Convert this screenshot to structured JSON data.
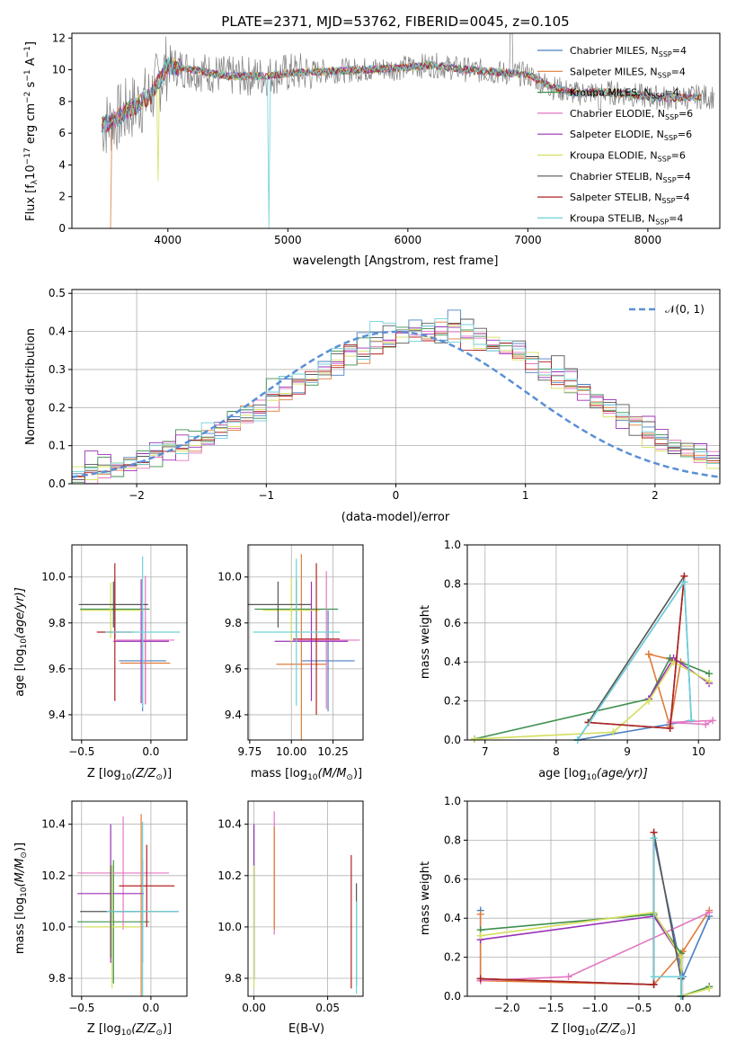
{
  "chart_data": [
    {
      "id": "spectrum",
      "type": "line",
      "title": "PLATE=2371, MJD=53762, FIBERID=0045, z=0.105",
      "xlabel": "wavelength [Angstrom, rest frame]",
      "ylabel": "Flux [f",
      "ylabel_sub": "λ",
      "ylabel_mid": "10",
      "ylabel_sup1": "−17",
      "ylabel_tail": " erg cm",
      "ylabel_sup2": "−2",
      "ylabel_tail2": " s",
      "ylabel_sup3": "−1",
      "ylabel_tail3": " A",
      "ylabel_sup4": "−1",
      "ylabel_end": "]",
      "xlim": [
        3200,
        8600
      ],
      "ylim": [
        0,
        12.3
      ],
      "xticks": [
        4000,
        5000,
        6000,
        7000,
        8000
      ],
      "yticks": [
        0,
        2,
        4,
        6,
        8,
        10,
        12
      ],
      "xtick_labels": [
        "4000",
        "5000",
        "6000",
        "7000",
        "8000"
      ],
      "ytick_labels": [
        "0",
        "2",
        "4",
        "6",
        "8",
        "10",
        "12"
      ],
      "grid": false,
      "legend_position": "right",
      "series": [
        {
          "label": "Chabrier MILES, N",
          "sub": "SSP",
          "tail": "=4",
          "color": "#4c7fc0"
        },
        {
          "label": "Salpeter MILES, N",
          "sub": "SSP",
          "tail": "=4",
          "color": "#e07b39"
        },
        {
          "label": "Kroupa MILES, N",
          "sub": "SSP",
          "tail": "=4",
          "color": "#3f8f4f"
        },
        {
          "label": "Chabrier ELODIE, N",
          "sub": "SSP",
          "tail": "=6",
          "color": "#e377c2"
        },
        {
          "label": "Salpeter ELODIE, N",
          "sub": "SSP",
          "tail": "=6",
          "color": "#9a32b8"
        },
        {
          "label": "Kroupa ELODIE, N",
          "sub": "SSP",
          "tail": "=6",
          "color": "#d4df5c"
        },
        {
          "label": "Chabrier STELIB, N",
          "sub": "SSP",
          "tail": "=4",
          "color": "#555555"
        },
        {
          "label": "Salpeter STELIB, N",
          "sub": "SSP",
          "tail": "=4",
          "color": "#b22222"
        },
        {
          "label": "Kroupa STELIB, N",
          "sub": "SSP",
          "tail": "=4",
          "color": "#6fd0d8"
        }
      ],
      "data_color": "#808080",
      "model_continuum": {
        "x": [
          3450,
          3550,
          3700,
          3850,
          4000,
          4200,
          4500,
          4800,
          5000,
          5300,
          5600,
          5900,
          6200,
          6500,
          6800,
          7000,
          7200,
          7400,
          7600,
          7800,
          8000,
          8200,
          8400
        ],
        "y": [
          6.5,
          6.8,
          7.6,
          8.3,
          10.3,
          10.0,
          9.6,
          9.6,
          9.8,
          9.9,
          10.0,
          10.1,
          10.3,
          10.0,
          9.8,
          9.7,
          8.9,
          8.5,
          8.6,
          8.5,
          8.3,
          8.2,
          8.3
        ]
      }
    },
    {
      "id": "residual-histogram",
      "type": "step",
      "xlabel": "(data-model)/error",
      "ylabel": "Normed distribution",
      "xlim": [
        -2.5,
        2.5
      ],
      "ylim": [
        0,
        0.51
      ],
      "xticks": [
        -2,
        -1,
        0,
        1,
        2
      ],
      "xtick_labels": [
        "−2",
        "−1",
        "0",
        "1",
        "2"
      ],
      "yticks": [
        0,
        0.1,
        0.2,
        0.3,
        0.4,
        0.5
      ],
      "ytick_labels": [
        "0.0",
        "0.1",
        "0.2",
        "0.3",
        "0.4",
        "0.5"
      ],
      "grid": true,
      "legend_label": "𝒩(0, 1)",
      "legend_position": "top-right",
      "normal_curve_color": "#5b8fd6",
      "bin_width": 0.1,
      "bin_start": -2.5,
      "base_values": [
        0.025,
        0.03,
        0.035,
        0.04,
        0.055,
        0.065,
        0.08,
        0.09,
        0.1,
        0.11,
        0.125,
        0.14,
        0.155,
        0.18,
        0.2,
        0.22,
        0.24,
        0.26,
        0.28,
        0.3,
        0.32,
        0.34,
        0.355,
        0.37,
        0.38,
        0.39,
        0.395,
        0.4,
        0.405,
        0.4,
        0.39,
        0.38,
        0.37,
        0.355,
        0.34,
        0.32,
        0.3,
        0.28,
        0.26,
        0.24,
        0.22,
        0.2,
        0.18,
        0.155,
        0.135,
        0.115,
        0.1,
        0.085,
        0.07,
        0.06
      ],
      "noise": [
        0.002,
        0.005,
        -0.004,
        0.01,
        0.02,
        -0.01,
        0.01,
        0.015,
        -0.01,
        0.02,
        0.01,
        -0.02,
        0.03,
        0.02,
        -0.03,
        0.02,
        0.05,
        -0.03,
        0.01,
        0.03,
        -0.05,
        0.03,
        0.06,
        0.04,
        -0.02,
        0.02,
        0.05,
        0.02,
        -0.04,
        0.08,
        0.06,
        0.02,
        -0.03,
        0.02,
        0.04,
        -0.04,
        0.04,
        -0.02,
        -0.03,
        0.03,
        0.02,
        0.01,
        -0.02,
        0.03,
        0.02,
        0.01,
        -0.01,
        0.01,
        0.0,
        0.01
      ],
      "series_colors": [
        "#4c7fc0",
        "#e07b39",
        "#3f8f4f",
        "#e377c2",
        "#9a32b8",
        "#d4df5c",
        "#555555",
        "#b22222",
        "#6fd0d8"
      ]
    },
    {
      "id": "age-vs-metallicity",
      "type": "errorbar",
      "xlabel": "Z [log",
      "xlabel_sub": "10",
      "xlabel_tail": "(Z/Z",
      "xlabel_sub2": "⊙",
      "xlabel_end": ")]",
      "ylabel": "age  [log",
      "ylabel_sub": "10",
      "ylabel_tail": "(age/yr)]",
      "xlim": [
        -0.57,
        0.26
      ],
      "ylim": [
        9.29,
        10.14
      ],
      "xticks": [
        -0.5,
        0.0
      ],
      "xtick_labels": [
        "−0.5",
        "0.0"
      ],
      "yticks": [
        9.4,
        9.6,
        9.8,
        10.0
      ],
      "ytick_labels": [
        "9.4",
        "9.6",
        "9.8",
        "10.0"
      ],
      "grid": true,
      "points": [
        {
          "x": -0.06,
          "xerr": 0.17,
          "y": 9.635,
          "yerr": 0.22,
          "color": "#4c7fc0"
        },
        {
          "x": -0.04,
          "xerr": 0.18,
          "y": 9.625,
          "yerr": 0.18,
          "color": "#e07b39"
        },
        {
          "x": -0.26,
          "xerr": 0.25,
          "y": 9.86,
          "yerr": 0.13,
          "color": "#3f8f4f"
        },
        {
          "x": -0.04,
          "xerr": 0.21,
          "y": 9.725,
          "yerr": 0.28,
          "color": "#e377c2"
        },
        {
          "x": -0.07,
          "xerr": 0.2,
          "y": 9.72,
          "yerr": 0.27,
          "color": "#9a32b8"
        },
        {
          "x": -0.29,
          "xerr": 0.22,
          "y": 9.855,
          "yerr": 0.12,
          "color": "#d4df5c"
        },
        {
          "x": -0.27,
          "xerr": 0.25,
          "y": 9.88,
          "yerr": 0.1,
          "color": "#555555"
        },
        {
          "x": -0.26,
          "xerr": 0.13,
          "y": 9.76,
          "yerr": 0.3,
          "color": "#b22222"
        },
        {
          "x": -0.06,
          "xerr": 0.27,
          "y": 9.76,
          "yerr": 0.33,
          "color": "#6fd0d8"
        }
      ]
    },
    {
      "id": "age-vs-mass",
      "type": "errorbar",
      "xlabel": "mass [log",
      "xlabel_sub": "10",
      "xlabel_tail": "(M/M",
      "xlabel_sub2": "⊙",
      "xlabel_end": ")]",
      "xlim": [
        9.74,
        10.43
      ],
      "ylim": [
        9.29,
        10.14
      ],
      "xticks": [
        9.75,
        10.0,
        10.25
      ],
      "xtick_labels": [
        "9.75",
        "10.00",
        "10.25"
      ],
      "yticks": [
        9.4,
        9.6,
        9.8,
        10.0
      ],
      "ytick_labels": [
        "9.4",
        "9.6",
        "9.8",
        "10.0"
      ],
      "grid": true,
      "points": [
        {
          "x": 10.22,
          "xerr": 0.16,
          "y": 9.635,
          "yerr": 0.22,
          "color": "#4c7fc0"
        },
        {
          "x": 10.06,
          "xerr": 0.15,
          "y": 9.62,
          "yerr": 0.48,
          "color": "#e07b39"
        },
        {
          "x": 10.03,
          "xerr": 0.25,
          "y": 9.86,
          "yerr": 0.13,
          "color": "#3f8f4f"
        },
        {
          "x": 10.21,
          "xerr": 0.2,
          "y": 9.725,
          "yerr": 0.3,
          "color": "#e377c2"
        },
        {
          "x": 10.12,
          "xerr": 0.22,
          "y": 9.72,
          "yerr": 0.26,
          "color": "#9a32b8"
        },
        {
          "x": 10.0,
          "xerr": 0.17,
          "y": 9.855,
          "yerr": 0.14,
          "color": "#d4df5c"
        },
        {
          "x": 9.92,
          "xerr": 0.2,
          "y": 9.88,
          "yerr": 0.1,
          "color": "#555555"
        },
        {
          "x": 10.15,
          "xerr": 0.14,
          "y": 9.73,
          "yerr": 0.33,
          "color": "#b22222"
        },
        {
          "x": 10.03,
          "xerr": 0.26,
          "y": 9.76,
          "yerr": 0.32,
          "color": "#6fd0d8"
        }
      ]
    },
    {
      "id": "mass-weight-vs-age",
      "type": "line",
      "xlabel": "age  [log",
      "xlabel_sub": "10",
      "xlabel_tail": "(age/yr)]",
      "ylabel": "mass weight",
      "xlim": [
        6.75,
        10.3
      ],
      "ylim": [
        0,
        1.0
      ],
      "xticks": [
        7,
        8,
        9,
        10
      ],
      "xtick_labels": [
        "7",
        "8",
        "9",
        "10"
      ],
      "yticks": [
        0,
        0.2,
        0.4,
        0.6,
        0.8,
        1.0
      ],
      "ytick_labels": [
        "0.0",
        "0.2",
        "0.4",
        "0.6",
        "0.8",
        "1.0"
      ],
      "grid": true,
      "series": [
        {
          "color": "#4c7fc0",
          "x": [
            8.3,
            9.8,
            9.9,
            8.3
          ],
          "y": [
            0.0,
            0.81,
            0.1,
            0.0
          ]
        },
        {
          "color": "#e07b39",
          "x": [
            9.3,
            9.6,
            9.75,
            9.3
          ],
          "y": [
            0.44,
            0.07,
            0.4,
            0.44
          ]
        },
        {
          "color": "#3f8f4f",
          "x": [
            6.85,
            9.3,
            9.6,
            10.15
          ],
          "y": [
            0.005,
            0.21,
            0.42,
            0.34
          ]
        },
        {
          "color": "#e377c2",
          "x": [
            9.6,
            10.1,
            10.2,
            9.6
          ],
          "y": [
            0.09,
            0.08,
            0.1,
            0.09
          ]
        },
        {
          "color": "#9a32b8",
          "x": [
            9.3,
            9.65,
            10.15
          ],
          "y": [
            0.21,
            0.42,
            0.29
          ]
        },
        {
          "color": "#d4df5c",
          "x": [
            6.85,
            8.8,
            9.3,
            9.65,
            10.15
          ],
          "y": [
            0.005,
            0.04,
            0.2,
            0.4,
            0.3
          ]
        },
        {
          "color": "#555555",
          "x": [
            8.45,
            9.6,
            9.8,
            8.45
          ],
          "y": [
            0.09,
            0.06,
            0.84,
            0.09
          ]
        },
        {
          "color": "#b22222",
          "x": [
            8.45,
            9.6,
            9.8
          ],
          "y": [
            0.09,
            0.06,
            0.84
          ]
        },
        {
          "color": "#6fd0d8",
          "x": [
            8.3,
            9.8,
            9.9
          ],
          "y": [
            0.0,
            0.81,
            0.1
          ]
        }
      ]
    },
    {
      "id": "mass-vs-metallicity",
      "type": "errorbar",
      "xlabel": "Z [log",
      "xlabel_sub": "10",
      "xlabel_tail": "(Z/Z",
      "xlabel_sub2": "⊙",
      "xlabel_end": ")]",
      "ylabel": "mass [log",
      "ylabel_sub": "10",
      "ylabel_tail": "(M/M",
      "ylabel_sub2": "⊙",
      "ylabel_end": ")]",
      "xlim": [
        -0.57,
        0.26
      ],
      "ylim": [
        9.73,
        10.49
      ],
      "xticks": [
        -0.5,
        0.0
      ],
      "xtick_labels": [
        "−0.5",
        "0.0"
      ],
      "yticks": [
        9.8,
        10.0,
        10.2,
        10.4
      ],
      "ytick_labels": [
        "9.8",
        "10.0",
        "10.2",
        "10.4"
      ],
      "grid": true,
      "points": [
        {
          "x": -0.06,
          "xerr": 0.26,
          "y": 10.06,
          "yerr": 0.2,
          "color": "#4c7fc0"
        },
        {
          "x": -0.07,
          "xerr": 0.2,
          "y": 10.06,
          "yerr": 0.38,
          "color": "#e07b39"
        },
        {
          "x": -0.27,
          "xerr": 0.26,
          "y": 10.02,
          "yerr": 0.24,
          "color": "#3f8f4f"
        },
        {
          "x": -0.2,
          "xerr": 0.33,
          "y": 10.21,
          "yerr": 0.22,
          "color": "#e377c2"
        },
        {
          "x": -0.29,
          "xerr": 0.24,
          "y": 10.13,
          "yerr": 0.27,
          "color": "#9a32b8"
        },
        {
          "x": -0.28,
          "xerr": 0.2,
          "y": 10.0,
          "yerr": 0.24,
          "color": "#d4df5c"
        },
        {
          "x": -0.29,
          "xerr": 0.22,
          "y": 10.06,
          "yerr": 0.18,
          "color": "#555555"
        },
        {
          "x": -0.03,
          "xerr": 0.2,
          "y": 10.16,
          "yerr": 0.16,
          "color": "#b22222"
        },
        {
          "x": -0.06,
          "xerr": 0.26,
          "y": 10.06,
          "yerr": 0.35,
          "color": "#6fd0d8"
        }
      ]
    },
    {
      "id": "mass-vs-extinction",
      "type": "errorbar",
      "xlabel": "E(B-V)",
      "xlim": [
        -0.004,
        0.074
      ],
      "ylim": [
        9.73,
        10.49
      ],
      "xticks": [
        0.0,
        0.05
      ],
      "xtick_labels": [
        "0.00",
        "0.05"
      ],
      "yticks": [
        9.8,
        10.0,
        10.2,
        10.4
      ],
      "ytick_labels": [
        "9.8",
        "10.0",
        "10.2",
        "10.4"
      ],
      "grid": true,
      "points": [
        {
          "x": 0.0,
          "xerr": 0.0,
          "y": 10.02,
          "yerr": 0.23,
          "color": "#4c7fc0"
        },
        {
          "x": 0.0,
          "xerr": 0.0,
          "y": 10.1,
          "yerr": 0.3,
          "color": "#3f8f4f"
        },
        {
          "x": 0.0,
          "xerr": 0.0,
          "y": 10.1,
          "yerr": 0.3,
          "color": "#9a32b8"
        },
        {
          "x": 0.0,
          "xerr": 0.0,
          "y": 10.0,
          "yerr": 0.24,
          "color": "#d4df5c"
        },
        {
          "x": 0.0138,
          "xerr": 0.0,
          "y": 10.21,
          "yerr": 0.24,
          "color": "#e377c2"
        },
        {
          "x": 0.0138,
          "xerr": 0.0,
          "y": 10.19,
          "yerr": 0.2,
          "color": "#e07b39"
        },
        {
          "x": 0.066,
          "xerr": 0.0,
          "y": 10.02,
          "yerr": 0.26,
          "color": "#b22222"
        },
        {
          "x": 0.0695,
          "xerr": 0.0,
          "y": 9.97,
          "yerr": 0.2,
          "color": "#555555"
        },
        {
          "x": 0.0695,
          "xerr": 0.0,
          "y": 9.92,
          "yerr": 0.18,
          "color": "#6fd0d8"
        }
      ]
    },
    {
      "id": "mass-weight-vs-metallicity",
      "type": "line",
      "xlabel": "Z [log",
      "xlabel_sub": "10",
      "xlabel_tail": "(Z/Z",
      "xlabel_sub2": "⊙",
      "xlabel_end": ")]",
      "ylabel": "mass weight",
      "xlim": [
        -2.45,
        0.42
      ],
      "ylim": [
        0,
        1.0
      ],
      "xticks": [
        -2.0,
        -1.5,
        -1.0,
        -0.5,
        0.0
      ],
      "xtick_labels": [
        "−2.0",
        "−1.5",
        "−1.0",
        "−0.5",
        "0.0"
      ],
      "yticks": [
        0,
        0.2,
        0.4,
        0.6,
        0.8,
        1.0
      ],
      "ytick_labels": [
        "0.0",
        "0.2",
        "0.4",
        "0.6",
        "0.8",
        "1.0"
      ],
      "grid": true,
      "series": [
        {
          "color": "#4c7fc0",
          "x": [
            -2.3,
            -2.3,
            -0.33,
            -0.33,
            0.0,
            0.3
          ],
          "y": [
            0.44,
            0.09,
            0.06,
            0.81,
            0.1,
            0.41
          ]
        },
        {
          "color": "#e07b39",
          "x": [
            -2.3,
            -2.3,
            -0.33,
            0.0,
            0.3
          ],
          "y": [
            0.42,
            0.08,
            0.06,
            0.23,
            0.44
          ]
        },
        {
          "color": "#3f8f4f",
          "x": [
            -2.3,
            -0.33,
            -0.02,
            -0.02,
            0.3
          ],
          "y": [
            0.34,
            0.42,
            0.22,
            0.0,
            0.05
          ]
        },
        {
          "color": "#e377c2",
          "x": [
            -2.3,
            -1.3,
            0.3
          ],
          "y": [
            0.08,
            0.1,
            0.43
          ]
        },
        {
          "color": "#9a32b8",
          "x": [
            -2.3,
            -0.33,
            -0.02
          ],
          "y": [
            0.29,
            0.41,
            0.2
          ]
        },
        {
          "color": "#d4df5c",
          "x": [
            -2.3,
            -0.33,
            -0.02,
            -0.02,
            0.3
          ],
          "y": [
            0.31,
            0.43,
            0.2,
            0.0,
            0.04
          ]
        },
        {
          "color": "#555555",
          "x": [
            -2.3,
            -0.33,
            -0.33,
            -0.02,
            -0.02
          ],
          "y": [
            0.09,
            0.06,
            0.84,
            0.09,
            0.0
          ]
        },
        {
          "color": "#b22222",
          "x": [
            -2.3,
            -0.33,
            -0.33
          ],
          "y": [
            0.09,
            0.06,
            0.84
          ]
        },
        {
          "color": "#6fd0d8",
          "x": [
            -0.33,
            -0.33,
            -0.02,
            -0.02
          ],
          "y": [
            0.81,
            0.1,
            0.1,
            0.0
          ]
        }
      ]
    }
  ]
}
